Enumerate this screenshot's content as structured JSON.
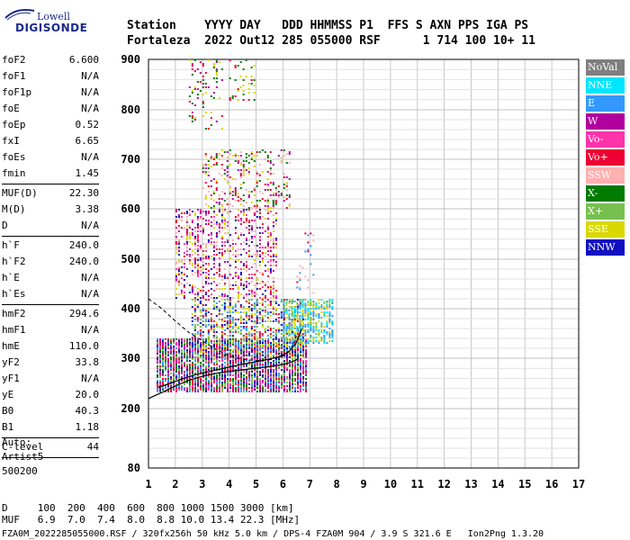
{
  "logo": {
    "line1": "Lowell",
    "line2": "DIGISONDE"
  },
  "header": {
    "line1": "Station    YYYY DAY   DDD HHMMSS P1  FFS S AXN PPS IGA PS",
    "line2": "Fortaleza  2022 Out12 285 055000 RSF      1 714 100 10+ 11"
  },
  "params": [
    {
      "group": [
        {
          "k": "foF2",
          "v": "6.600"
        },
        {
          "k": "foF1",
          "v": "N/A"
        },
        {
          "k": "foF1p",
          "v": "N/A"
        },
        {
          "k": "foE",
          "v": "N/A"
        },
        {
          "k": "foEp",
          "v": "0.52"
        },
        {
          "k": "fxI",
          "v": "6.65"
        },
        {
          "k": "foEs",
          "v": "N/A"
        },
        {
          "k": "fmin",
          "v": "1.45"
        }
      ]
    },
    {
      "group": [
        {
          "k": "MUF(D)",
          "v": "22.30"
        },
        {
          "k": "M(D)",
          "v": "3.38"
        },
        {
          "k": "D",
          "v": "N/A"
        }
      ]
    },
    {
      "group": [
        {
          "k": "h`F",
          "v": "240.0"
        },
        {
          "k": "h`F2",
          "v": "240.0"
        },
        {
          "k": "h`E",
          "v": "N/A"
        },
        {
          "k": "h`Es",
          "v": "N/A"
        }
      ]
    },
    {
      "group": [
        {
          "k": "hmF2",
          "v": "294.6"
        },
        {
          "k": "hmF1",
          "v": "N/A"
        },
        {
          "k": "hmE",
          "v": "110.0"
        },
        {
          "k": "yF2",
          "v": "33.8"
        },
        {
          "k": "yF1",
          "v": "N/A"
        },
        {
          "k": "yE",
          "v": "20.0"
        },
        {
          "k": "B0",
          "v": "40.3"
        },
        {
          "k": "B1",
          "v": "1.18"
        }
      ]
    },
    {
      "group": [
        {
          "k": "C-level",
          "v": "44"
        }
      ]
    }
  ],
  "auto": {
    "line1": "Auto:",
    "line2": "Artist5",
    "line3": "500200"
  },
  "legend": [
    {
      "label": "NoVal",
      "color": "#7f7f7f"
    },
    {
      "label": "NNE",
      "color": "#00e5ff"
    },
    {
      "label": "E",
      "color": "#3399ff"
    },
    {
      "label": "W",
      "color": "#b0009e"
    },
    {
      "label": "Vo-",
      "color": "#ff33aa"
    },
    {
      "label": "Vo+",
      "color": "#ee0033"
    },
    {
      "label": "SSW",
      "color": "#ffb0b0"
    },
    {
      "label": "X-",
      "color": "#007a00"
    },
    {
      "label": "X+",
      "color": "#77c050"
    },
    {
      "label": "SSE",
      "color": "#d8d800"
    },
    {
      "label": "NNW",
      "color": "#1010c0"
    }
  ],
  "bottom": {
    "line1": "D     100  200  400  600  800 1000 1500 3000 [km]",
    "line2": "MUF   6.9  7.0  7.4  8.0  8.8 10.0 13.4 22.3 [MHz]",
    "line3": "FZA0M_2022285055000.RSF / 320fx256h 50 kHz 5.0 km / DPS-4 FZA0M 904 / 3.9 S 321.6 E   Ion2Png 1.3.20"
  },
  "chart_data": {
    "type": "scatter",
    "xlabel": "",
    "ylabel": "",
    "xlim": [
      1,
      17
    ],
    "ylim": [
      80,
      900
    ],
    "x_ticks": [
      1,
      2,
      3,
      4,
      5,
      6,
      7,
      8,
      9,
      10,
      11,
      12,
      13,
      14,
      15,
      16,
      17
    ],
    "y_ticks": [
      80,
      200,
      300,
      400,
      500,
      600,
      700,
      800,
      900
    ],
    "grid": true,
    "ordinary_trace": [
      [
        1.0,
        220
      ],
      [
        1.5,
        232
      ],
      [
        2.0,
        245
      ],
      [
        2.5,
        256
      ],
      [
        3.0,
        264
      ],
      [
        3.5,
        270
      ],
      [
        4.0,
        274
      ],
      [
        4.5,
        277
      ],
      [
        5.0,
        280
      ],
      [
        5.5,
        283
      ],
      [
        6.0,
        288
      ],
      [
        6.3,
        292
      ],
      [
        6.55,
        298
      ]
    ],
    "extraordinary_trace": [
      [
        1.35,
        242
      ],
      [
        1.8,
        250
      ],
      [
        2.3,
        260
      ],
      [
        2.8,
        268
      ],
      [
        3.3,
        274
      ],
      [
        3.8,
        280
      ],
      [
        4.3,
        286
      ],
      [
        4.8,
        291
      ],
      [
        5.3,
        296
      ],
      [
        5.8,
        302
      ],
      [
        6.2,
        312
      ],
      [
        6.5,
        332
      ],
      [
        6.7,
        360
      ]
    ],
    "profile_curve": [
      [
        1.0,
        420
      ],
      [
        1.5,
        400
      ],
      [
        2.0,
        375
      ],
      [
        2.5,
        352
      ],
      [
        3.0,
        335
      ],
      [
        3.5,
        318
      ],
      [
        4.0,
        305
      ],
      [
        4.5,
        298
      ],
      [
        5.0,
        295
      ],
      [
        5.5,
        297
      ],
      [
        6.0,
        305
      ],
      [
        6.3,
        318
      ],
      [
        6.5,
        345
      ]
    ],
    "profile_dashed": true,
    "echo_clusters": [
      {
        "x": [
          1.3,
          6.9
        ],
        "y": [
          235,
          340
        ],
        "density": 0.85,
        "colors": [
          "#ee0033",
          "#ff33aa",
          "#3399ff",
          "#007a00",
          "#77c050",
          "#1010c0",
          "#b0009e"
        ]
      },
      {
        "x": [
          2.6,
          6.8
        ],
        "y": [
          300,
          420
        ],
        "density": 0.5,
        "colors": [
          "#3399ff",
          "#77c050",
          "#ee0033",
          "#d8d800",
          "#1010c0"
        ]
      },
      {
        "x": [
          6.0,
          7.9
        ],
        "y": [
          330,
          420
        ],
        "density": 0.65,
        "colors": [
          "#3399ff",
          "#d8d800",
          "#77c050",
          "#00e5ff"
        ]
      },
      {
        "x": [
          2.0,
          5.8
        ],
        "y": [
          420,
          600
        ],
        "density": 0.35,
        "colors": [
          "#ee0033",
          "#b0009e",
          "#ff33aa",
          "#1010c0",
          "#d8d800",
          "#ffb0b0"
        ]
      },
      {
        "x": [
          3.0,
          6.3
        ],
        "y": [
          600,
          720
        ],
        "density": 0.25,
        "colors": [
          "#ee0033",
          "#ffb0b0",
          "#d8d800",
          "#b0009e",
          "#007a00"
        ]
      },
      {
        "x": [
          2.5,
          3.8
        ],
        "y": [
          760,
          900
        ],
        "density": 0.15,
        "colors": [
          "#ee0033",
          "#007a00",
          "#b0009e",
          "#d8d800"
        ]
      },
      {
        "x": [
          4.0,
          5.0
        ],
        "y": [
          820,
          900
        ],
        "density": 0.15,
        "colors": [
          "#007a00",
          "#d8d800",
          "#ee0033"
        ]
      },
      {
        "x": [
          6.5,
          7.2
        ],
        "y": [
          430,
          560
        ],
        "density": 0.12,
        "colors": [
          "#ee0033",
          "#ffb0b0",
          "#3399ff"
        ]
      }
    ]
  }
}
